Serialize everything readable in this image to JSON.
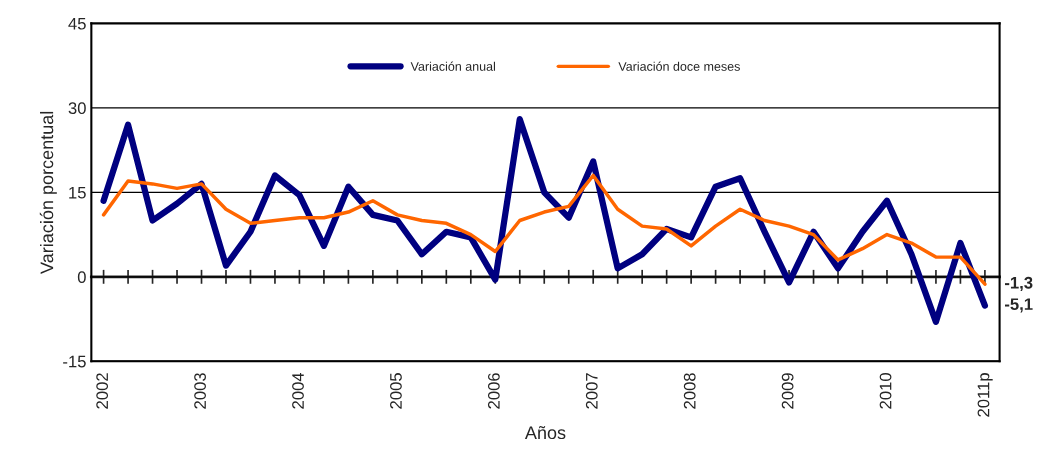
{
  "chart_data": {
    "type": "line",
    "xlabel": "Años",
    "ylabel": "Variación porcentual",
    "categories": [
      "2002",
      null,
      null,
      null,
      "2003",
      null,
      null,
      null,
      "2004",
      null,
      null,
      null,
      "2005",
      null,
      null,
      null,
      "2006",
      null,
      null,
      null,
      "2007",
      null,
      null,
      null,
      "2008",
      null,
      null,
      null,
      "2009",
      null,
      null,
      null,
      "2010",
      null,
      null,
      null,
      "2011p"
    ],
    "series": [
      {
        "name": "Variación anual",
        "color": "#000080",
        "values": [
          13.5,
          27,
          10,
          13,
          16.5,
          2,
          8,
          18,
          14.5,
          5.5,
          16,
          11,
          10,
          4,
          8,
          7,
          -0.5,
          28,
          15,
          10.5,
          20.5,
          1.5,
          4,
          8.5,
          7,
          16,
          17.5,
          8,
          -1,
          8,
          1.5,
          8,
          13.5,
          4,
          -8,
          6,
          -5.1
        ]
      },
      {
        "name": "Variación doce meses",
        "color": "#ff6600",
        "values": [
          11,
          17,
          16.5,
          15.7,
          16.5,
          12,
          9.5,
          10,
          10.5,
          10.5,
          11.5,
          13.5,
          11,
          10,
          9.5,
          7.5,
          4.5,
          10,
          11.5,
          12.5,
          18,
          12,
          9,
          8.5,
          5.5,
          9,
          12,
          10,
          9,
          7.5,
          3,
          5,
          7.5,
          6,
          3.5,
          3.5,
          -1.3
        ]
      }
    ],
    "ylim": [
      -15,
      45
    ],
    "yticks": [
      -15,
      0,
      15,
      30,
      45
    ],
    "grid": "y",
    "legend": "top",
    "line_style": "solid",
    "marker": "none",
    "annotations": [
      "-1,3",
      "-5,1"
    ]
  }
}
